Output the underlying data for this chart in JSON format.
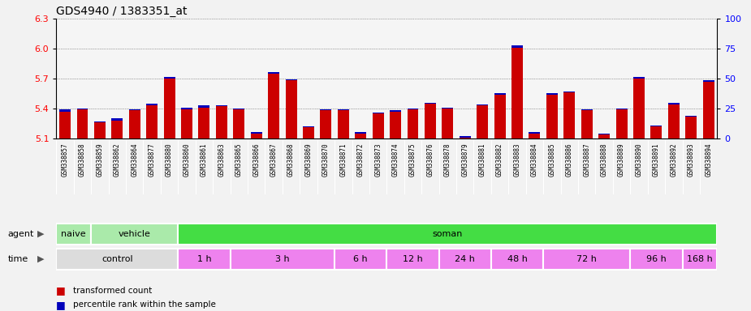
{
  "title": "GDS4940 / 1383351_at",
  "samples": [
    "GSM338857",
    "GSM338858",
    "GSM338859",
    "GSM338862",
    "GSM338864",
    "GSM338877",
    "GSM338880",
    "GSM338860",
    "GSM338861",
    "GSM338863",
    "GSM338865",
    "GSM338866",
    "GSM338867",
    "GSM338868",
    "GSM338869",
    "GSM338870",
    "GSM338871",
    "GSM338872",
    "GSM338873",
    "GSM338874",
    "GSM338875",
    "GSM338876",
    "GSM338878",
    "GSM338879",
    "GSM338881",
    "GSM338882",
    "GSM338883",
    "GSM338884",
    "GSM338885",
    "GSM338886",
    "GSM338887",
    "GSM338888",
    "GSM338889",
    "GSM338890",
    "GSM338891",
    "GSM338892",
    "GSM338893",
    "GSM338894"
  ],
  "red_values": [
    5.37,
    5.39,
    5.26,
    5.28,
    5.38,
    5.43,
    5.7,
    5.39,
    5.41,
    5.42,
    5.39,
    5.15,
    5.75,
    5.68,
    5.21,
    5.38,
    5.38,
    5.15,
    5.35,
    5.37,
    5.39,
    5.45,
    5.4,
    5.11,
    5.43,
    5.54,
    6.01,
    5.15,
    5.54,
    5.56,
    5.38,
    5.14,
    5.39,
    5.7,
    5.22,
    5.44,
    5.32,
    5.67
  ],
  "blue_values": [
    0.018,
    0.012,
    0.01,
    0.018,
    0.013,
    0.018,
    0.013,
    0.018,
    0.022,
    0.013,
    0.01,
    0.01,
    0.013,
    0.013,
    0.01,
    0.01,
    0.013,
    0.01,
    0.01,
    0.01,
    0.01,
    0.01,
    0.01,
    0.01,
    0.013,
    0.013,
    0.022,
    0.01,
    0.013,
    0.01,
    0.013,
    0.01,
    0.013,
    0.013,
    0.01,
    0.013,
    0.01,
    0.01
  ],
  "baseline": 5.1,
  "ylim_left": [
    5.1,
    6.3
  ],
  "ylim_right": [
    0,
    100
  ],
  "yticks_left": [
    5.1,
    5.4,
    5.7,
    6.0,
    6.3
  ],
  "yticks_right": [
    0,
    25,
    50,
    75,
    100
  ],
  "agent_groups": [
    {
      "label": "naive",
      "start": 0,
      "end": 2,
      "color": "#AAEAAA"
    },
    {
      "label": "vehicle",
      "start": 2,
      "end": 7,
      "color": "#AAEAAA"
    },
    {
      "label": "soman",
      "start": 7,
      "end": 38,
      "color": "#44DD44"
    }
  ],
  "time_groups": [
    {
      "label": "control",
      "start": 0,
      "end": 7,
      "color": "#E8E8E8"
    },
    {
      "label": "1 h",
      "start": 7,
      "end": 10,
      "color": "#EE82EE"
    },
    {
      "label": "3 h",
      "start": 10,
      "end": 16,
      "color": "#EE82EE"
    },
    {
      "label": "6 h",
      "start": 16,
      "end": 19,
      "color": "#EE82EE"
    },
    {
      "label": "12 h",
      "start": 19,
      "end": 22,
      "color": "#EE82EE"
    },
    {
      "label": "24 h",
      "start": 22,
      "end": 25,
      "color": "#EE82EE"
    },
    {
      "label": "48 h",
      "start": 25,
      "end": 28,
      "color": "#EE82EE"
    },
    {
      "label": "72 h",
      "start": 28,
      "end": 33,
      "color": "#EE82EE"
    },
    {
      "label": "96 h",
      "start": 33,
      "end": 36,
      "color": "#EE82EE"
    },
    {
      "label": "168 h",
      "start": 36,
      "end": 38,
      "color": "#EE82EE"
    }
  ],
  "bar_color_red": "#CC0000",
  "bar_color_blue": "#0000BB",
  "background_color": "#F2F2F2",
  "plot_bg_color": "#F5F5F5",
  "xticklabel_bg": "#D8D8D8",
  "title_fontsize": 10,
  "label_fontsize": 7.5,
  "bar_width": 0.65
}
